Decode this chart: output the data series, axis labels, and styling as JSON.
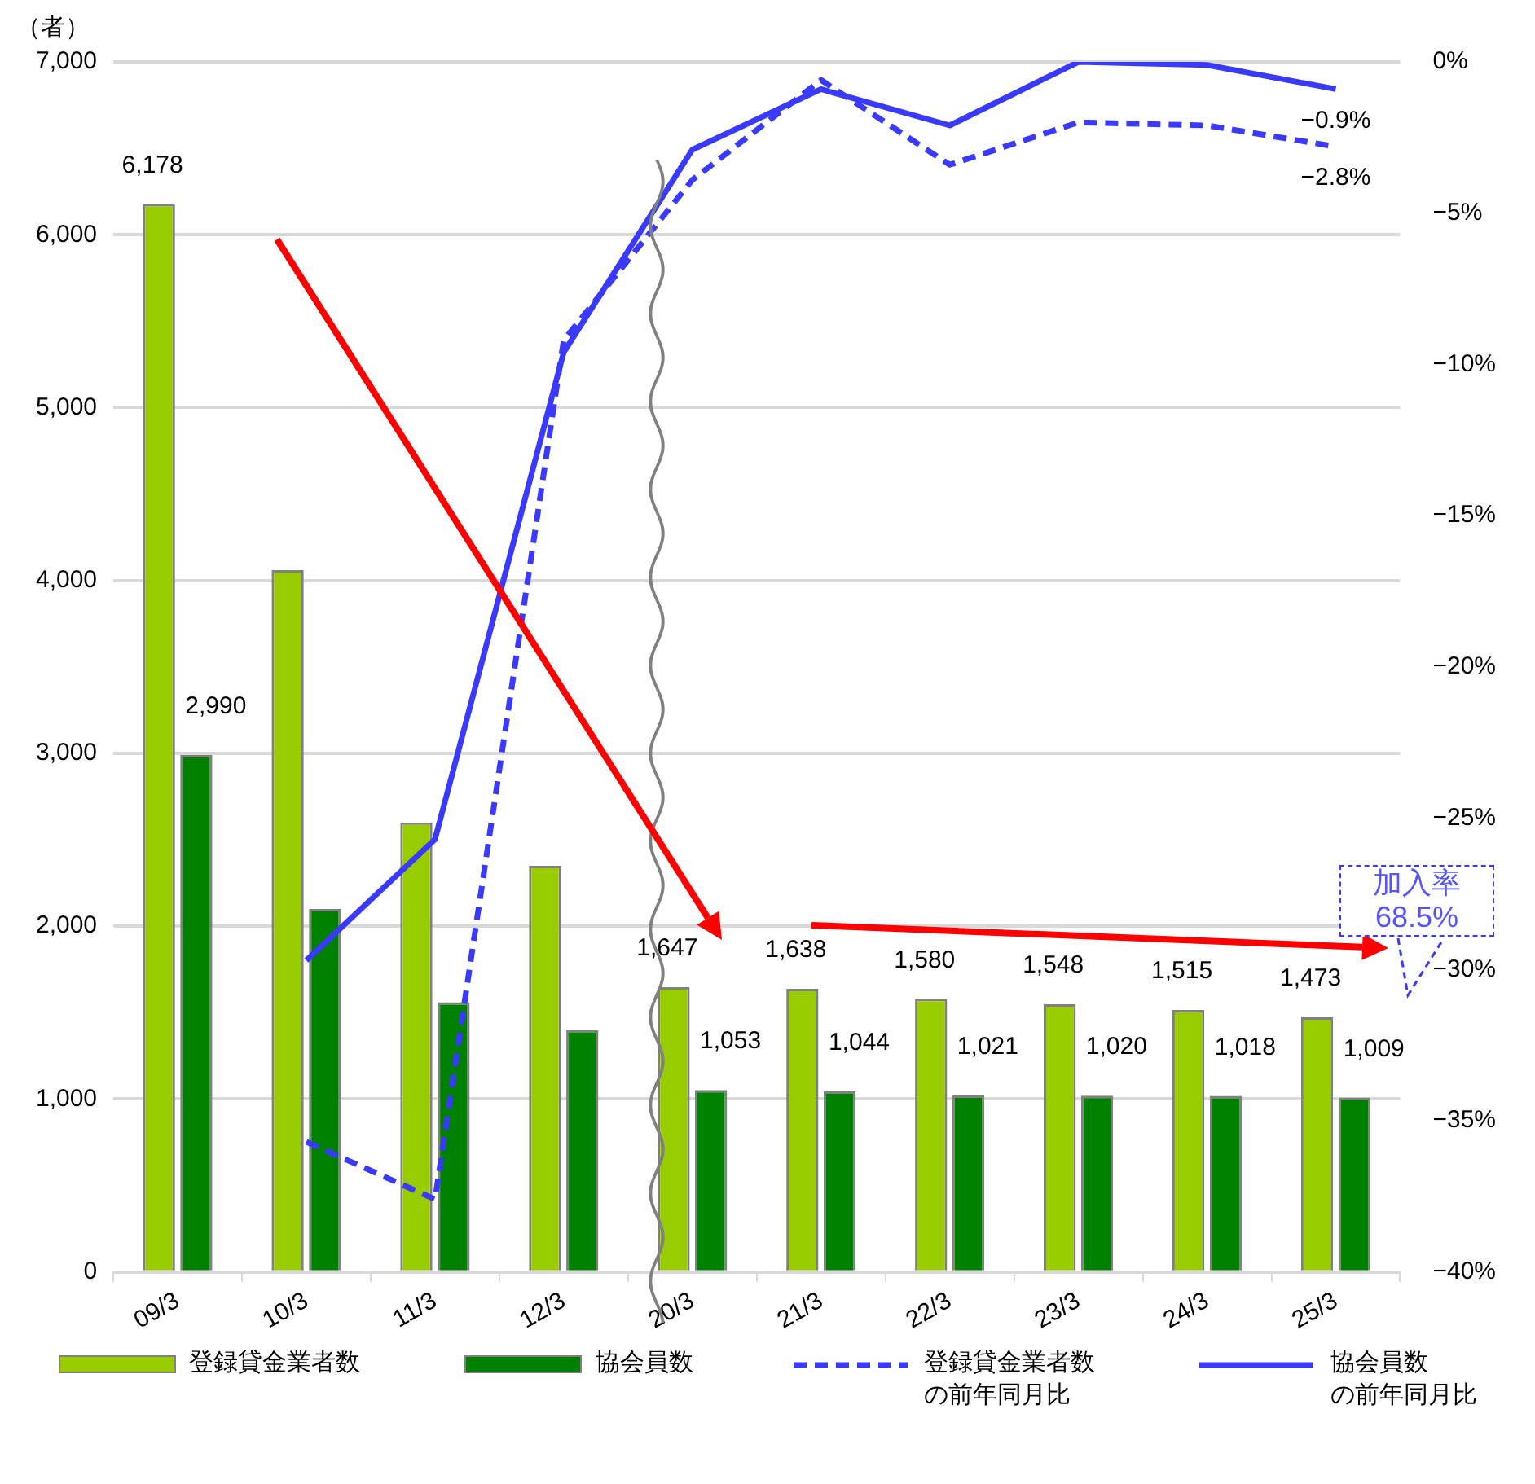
{
  "chart_data": {
    "type": "bar",
    "ylabel": "（者）",
    "categories": [
      "09/3",
      "10/3",
      "11/3",
      "12/3",
      "20/3",
      "21/3",
      "22/3",
      "23/3",
      "24/3",
      "25/3"
    ],
    "series": [
      {
        "name": "登録貸金業者数",
        "color": "#99cc00",
        "values": [
          6178,
          4060,
          2600,
          2350,
          1647,
          1638,
          1580,
          1548,
          1515,
          1473
        ],
        "value_labels": [
          "6,178",
          null,
          null,
          null,
          "1,647",
          "1,638",
          "1,580",
          "1,548",
          "1,515",
          "1,473"
        ]
      },
      {
        "name": "協会員数",
        "color": "#008000",
        "values": [
          2990,
          2100,
          1560,
          1400,
          1053,
          1044,
          1021,
          1020,
          1018,
          1009
        ],
        "value_labels": [
          "2,990",
          null,
          null,
          null,
          "1,053",
          "1,044",
          "1,021",
          "1,020",
          "1,018",
          "1,009"
        ]
      },
      {
        "name": "登録貸金業者数の前年同月比",
        "type": "line",
        "axis": "y2",
        "line_style": "dashed",
        "color": "#3a3aff",
        "values": [
          null,
          -35.7,
          -37.6,
          -9.2,
          -3.9,
          -0.6,
          -3.4,
          -2.0,
          -2.1,
          -2.8
        ],
        "value_labels": [
          null,
          null,
          null,
          null,
          null,
          null,
          null,
          null,
          null,
          "−2.8%"
        ]
      },
      {
        "name": "協会員数の前年同月比",
        "type": "line",
        "axis": "y2",
        "line_style": "solid",
        "color": "#3a3aff",
        "values": [
          null,
          -29.7,
          -25.7,
          -9.6,
          -2.9,
          -0.9,
          -2.1,
          0.0,
          -0.1,
          -0.9
        ],
        "value_labels": [
          null,
          null,
          null,
          null,
          null,
          null,
          null,
          null,
          null,
          "−0.9%"
        ]
      }
    ],
    "ylim": [
      0,
      7000
    ],
    "yticks": [
      {
        "value": 0,
        "label": "0"
      },
      {
        "value": 1000,
        "label": "1,000"
      },
      {
        "value": 2000,
        "label": "2,000"
      },
      {
        "value": 3000,
        "label": "3,000"
      },
      {
        "value": 4000,
        "label": "4,000"
      },
      {
        "value": 5000,
        "label": "5,000"
      },
      {
        "value": 6000,
        "label": "6,000"
      },
      {
        "value": 7000,
        "label": "7,000"
      }
    ],
    "y2lim": [
      -40,
      0
    ],
    "y2ticks": [
      {
        "value": 0,
        "label": "0%"
      },
      {
        "value": -5,
        "label": "−5%"
      },
      {
        "value": -10,
        "label": "−10%"
      },
      {
        "value": -15,
        "label": "−15%"
      },
      {
        "value": -20,
        "label": "−20%"
      },
      {
        "value": -25,
        "label": "−25%"
      },
      {
        "value": -30,
        "label": "−30%"
      },
      {
        "value": -35,
        "label": "−35%"
      },
      {
        "value": -40,
        "label": "−40%"
      }
    ],
    "annotations": [
      "加入率 68.5%"
    ],
    "grid": "y",
    "legend": "bottom",
    "marker": "none"
  }
}
